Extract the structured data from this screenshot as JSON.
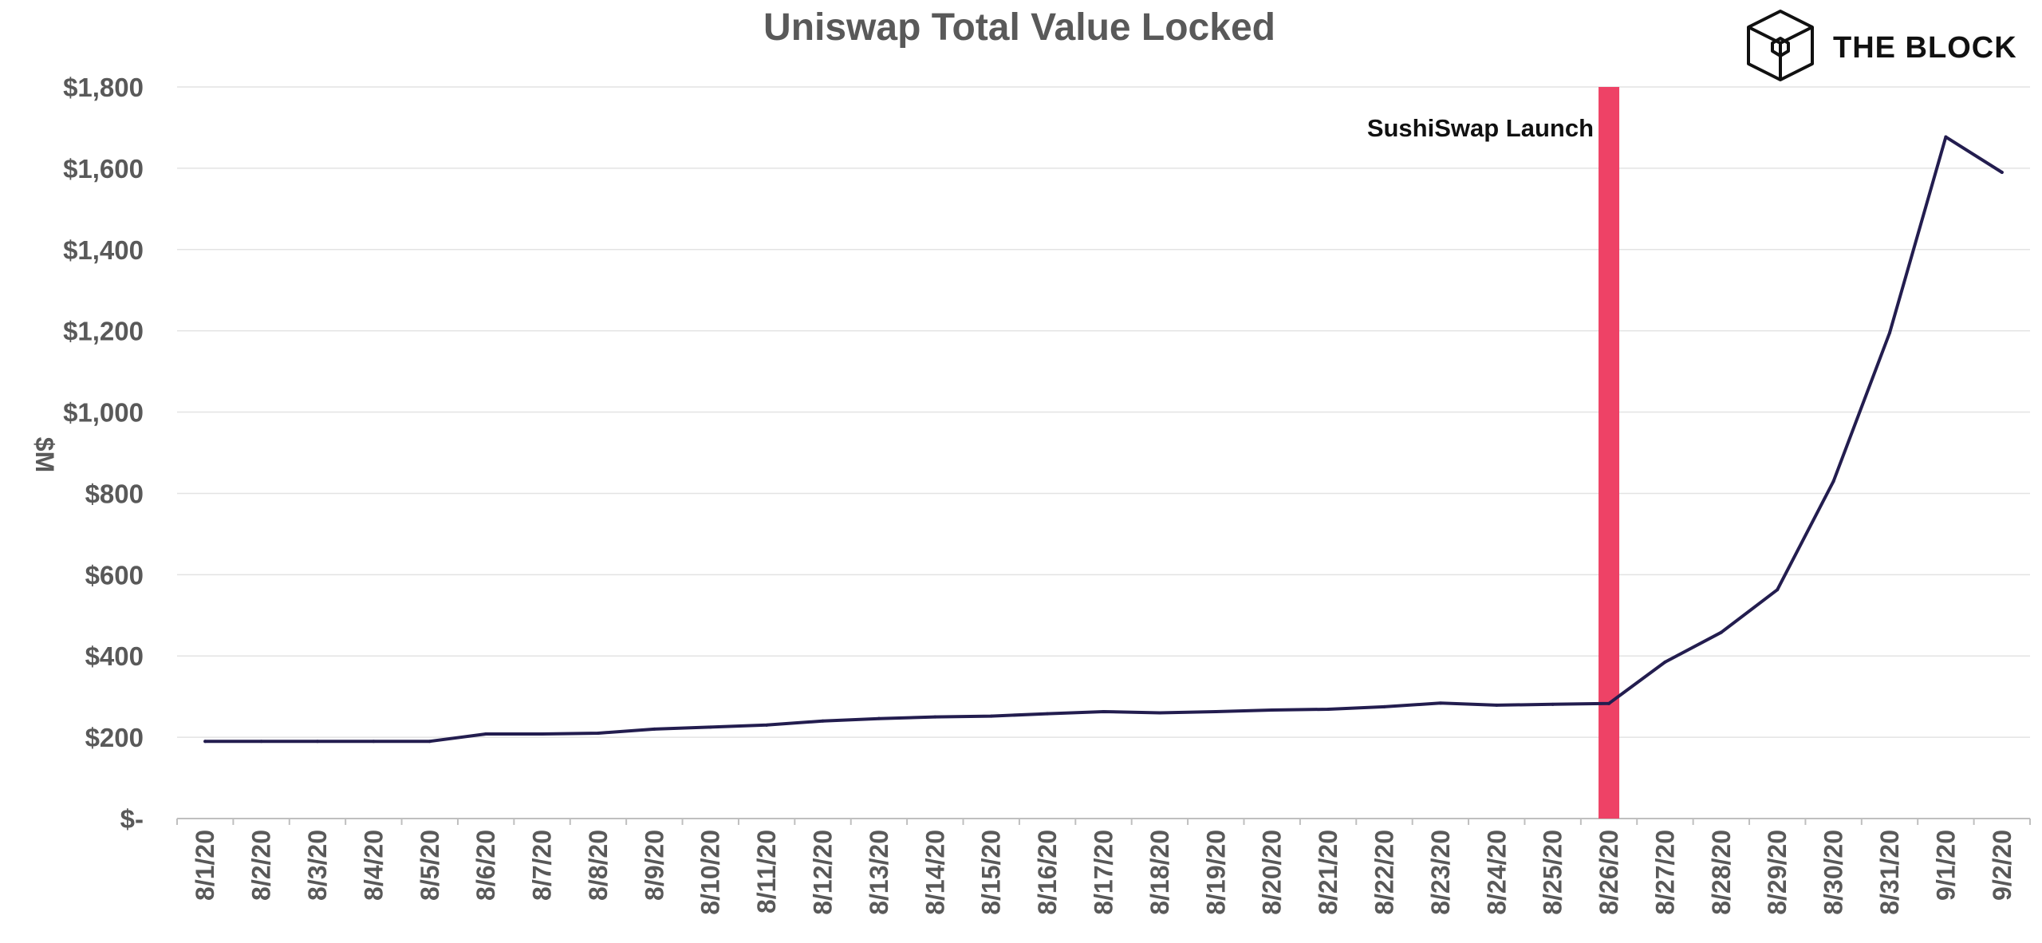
{
  "brand": {
    "name": "THE BLOCK",
    "icon": "cube-icon"
  },
  "chart_data": {
    "type": "line",
    "title": "Uniswap Total Value Locked",
    "xlabel": "",
    "ylabel": "$M",
    "ylim": [
      0,
      1800
    ],
    "y_ticks": [
      0,
      200,
      400,
      600,
      800,
      1000,
      1200,
      1400,
      1600,
      1800
    ],
    "y_tick_labels": [
      "$-",
      "$200",
      "$400",
      "$600",
      "$800",
      "$1,000",
      "$1,200",
      "$1,400",
      "$1,600",
      "$1,800"
    ],
    "grid": true,
    "legend": "none",
    "categories": [
      "8/1/20",
      "8/2/20",
      "8/3/20",
      "8/4/20",
      "8/5/20",
      "8/6/20",
      "8/7/20",
      "8/8/20",
      "8/9/20",
      "8/10/20",
      "8/11/20",
      "8/12/20",
      "8/13/20",
      "8/14/20",
      "8/15/20",
      "8/16/20",
      "8/17/20",
      "8/18/20",
      "8/19/20",
      "8/20/20",
      "8/21/20",
      "8/22/20",
      "8/23/20",
      "8/24/20",
      "8/25/20",
      "8/26/20",
      "8/27/20",
      "8/28/20",
      "8/29/20",
      "8/30/20",
      "8/31/20",
      "9/1/20",
      "9/2/20"
    ],
    "series": [
      {
        "color": "#231d4f",
        "values": [
          190,
          190,
          190,
          190,
          190,
          208,
          208,
          210,
          220,
          225,
          230,
          240,
          246,
          250,
          252,
          258,
          263,
          260,
          263,
          267,
          269,
          275,
          284,
          279,
          281,
          283,
          385,
          458,
          563,
          830,
          1195,
          1677,
          1590
        ]
      }
    ],
    "annotations": [
      {
        "text": "SushiSwap Launch",
        "category": "8/26/20",
        "color": "#ee4266"
      }
    ]
  }
}
